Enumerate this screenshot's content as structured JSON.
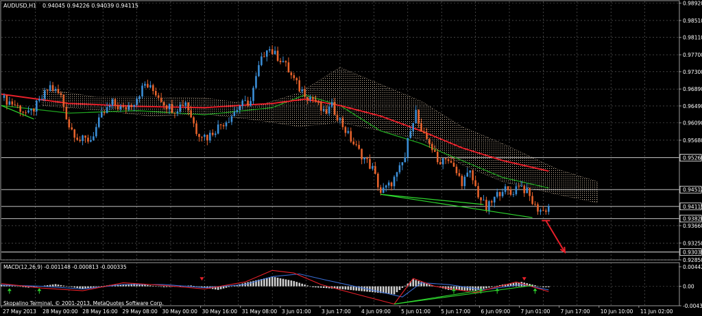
{
  "colors": {
    "background": "#000000",
    "grid": "#6b6b6b",
    "text": "#ffffff",
    "bull": "#3b8fd8",
    "bear": "#e8632c",
    "ma_red": "#e8202a",
    "ma_green": "#1fa21f",
    "cloud": "#cdb9a0",
    "trend_green": "#2ed82e",
    "arrow_red": "#e8202a",
    "macd_hist": "#cfcfcf",
    "macd_line": "#e8202a",
    "macd_signal": "#3b6fd8"
  },
  "header": {
    "symbol": "AUDUSD,H1",
    "ohlc": "0.94045 0.94226 0.94039 0.94115"
  },
  "macd_title": "MACD(12,26,9) -0.001148 -0.000813 -0.000335",
  "copyright": "Skopalino Terminal, © 2001-2013, MetaQuotes Software Corp.",
  "chart_data": [
    {
      "type": "candlestick",
      "symbol": "AUDUSD",
      "timeframe": "H1",
      "ylim": [
        0.9285,
        0.9893
      ],
      "ytick_labels": [
        "0.98920",
        "0.98510",
        "0.98110",
        "0.97700",
        "0.97300",
        "0.96890",
        "0.96490",
        "0.96090",
        "0.95680",
        "0.95266",
        "0.94512",
        "0.94115",
        "0.93826",
        "0.93660",
        "0.93250",
        "0.93038",
        "0.92850"
      ],
      "ytick_values": [
        0.9892,
        0.9851,
        0.9811,
        0.977,
        0.973,
        0.9689,
        0.9649,
        0.9609,
        0.9568,
        0.95266,
        0.94512,
        0.94115,
        0.93826,
        0.9366,
        0.9325,
        0.93038,
        0.9285
      ],
      "x_labels": [
        "27 May 2013",
        "28 May 00:00",
        "28 May 16:00",
        "29 May 08:00",
        "30 May 00:00",
        "30 May 16:00",
        "31 May 08:00",
        "3 Jun 01:00",
        "3 Jun 17:00",
        "4 Jun 09:00",
        "5 Jun 01:00",
        "5 Jun 17:00",
        "6 Jun 09:00",
        "7 Jun 01:00",
        "7 Jun 17:00",
        "10 Jun 10:00",
        "11 Jun 02:00"
      ],
      "horizontal_levels": [
        0.95266,
        0.94512,
        0.94115,
        0.93826,
        0.93038
      ],
      "highlighted_labels": [
        "0.95266",
        "0.94512",
        "0.94115",
        "0.93826",
        "0.93038"
      ],
      "close_path": [
        {
          "t": 0,
          "p": 0.9668
        },
        {
          "t": 5,
          "p": 0.9652
        },
        {
          "t": 10,
          "p": 0.9628
        },
        {
          "t": 14,
          "p": 0.9658
        },
        {
          "t": 18,
          "p": 0.9695
        },
        {
          "t": 22,
          "p": 0.9672
        },
        {
          "t": 25,
          "p": 0.9602
        },
        {
          "t": 29,
          "p": 0.9568
        },
        {
          "t": 33,
          "p": 0.957
        },
        {
          "t": 37,
          "p": 0.9625
        },
        {
          "t": 41,
          "p": 0.9655
        },
        {
          "t": 45,
          "p": 0.964
        },
        {
          "t": 49,
          "p": 0.966
        },
        {
          "t": 53,
          "p": 0.97
        },
        {
          "t": 57,
          "p": 0.968
        },
        {
          "t": 61,
          "p": 0.965
        },
        {
          "t": 64,
          "p": 0.964
        },
        {
          "t": 68,
          "p": 0.966
        },
        {
          "t": 72,
          "p": 0.959
        },
        {
          "t": 76,
          "p": 0.9575
        },
        {
          "t": 80,
          "p": 0.96
        },
        {
          "t": 84,
          "p": 0.962
        },
        {
          "t": 88,
          "p": 0.965
        },
        {
          "t": 92,
          "p": 0.966
        },
        {
          "t": 95,
          "p": 0.974
        },
        {
          "t": 98,
          "p": 0.979
        },
        {
          "t": 101,
          "p": 0.977
        },
        {
          "t": 104,
          "p": 0.9755
        },
        {
          "t": 107,
          "p": 0.972
        },
        {
          "t": 110,
          "p": 0.969
        },
        {
          "t": 113,
          "p": 0.9675
        },
        {
          "t": 116,
          "p": 0.966
        },
        {
          "t": 119,
          "p": 0.963
        },
        {
          "t": 122,
          "p": 0.9648
        },
        {
          "t": 125,
          "p": 0.9615
        },
        {
          "t": 128,
          "p": 0.958
        },
        {
          "t": 131,
          "p": 0.955
        },
        {
          "t": 134,
          "p": 0.9525
        },
        {
          "t": 137,
          "p": 0.95
        },
        {
          "t": 140,
          "p": 0.9445
        },
        {
          "t": 143,
          "p": 0.946
        },
        {
          "t": 146,
          "p": 0.9485
        },
        {
          "t": 149,
          "p": 0.9528
        },
        {
          "t": 151,
          "p": 0.96
        },
        {
          "t": 153,
          "p": 0.9635
        },
        {
          "t": 155,
          "p": 0.958
        },
        {
          "t": 158,
          "p": 0.9565
        },
        {
          "t": 161,
          "p": 0.9515
        },
        {
          "t": 164,
          "p": 0.953
        },
        {
          "t": 167,
          "p": 0.95
        },
        {
          "t": 170,
          "p": 0.947
        },
        {
          "t": 173,
          "p": 0.949
        },
        {
          "t": 176,
          "p": 0.944
        },
        {
          "t": 179,
          "p": 0.9405
        },
        {
          "t": 182,
          "p": 0.943
        },
        {
          "t": 185,
          "p": 0.9455
        },
        {
          "t": 188,
          "p": 0.944
        },
        {
          "t": 191,
          "p": 0.9465
        },
        {
          "t": 194,
          "p": 0.9445
        },
        {
          "t": 197,
          "p": 0.941
        },
        {
          "t": 200,
          "p": 0.94
        },
        {
          "t": 202,
          "p": 0.9412
        }
      ],
      "ma_red": [
        {
          "t": 0,
          "p": 0.9677
        },
        {
          "t": 25,
          "p": 0.9655
        },
        {
          "t": 50,
          "p": 0.9648
        },
        {
          "t": 75,
          "p": 0.9645
        },
        {
          "t": 100,
          "p": 0.9655
        },
        {
          "t": 112,
          "p": 0.9665
        },
        {
          "t": 125,
          "p": 0.965
        },
        {
          "t": 140,
          "p": 0.9625
        },
        {
          "t": 155,
          "p": 0.959
        },
        {
          "t": 170,
          "p": 0.955
        },
        {
          "t": 185,
          "p": 0.952
        },
        {
          "t": 202,
          "p": 0.9495
        }
      ],
      "ma_green": [
        {
          "t": 0,
          "p": 0.965
        },
        {
          "t": 25,
          "p": 0.9632
        },
        {
          "t": 50,
          "p": 0.9638
        },
        {
          "t": 75,
          "p": 0.9628
        },
        {
          "t": 100,
          "p": 0.9645
        },
        {
          "t": 112,
          "p": 0.9675
        },
        {
          "t": 125,
          "p": 0.965
        },
        {
          "t": 140,
          "p": 0.959
        },
        {
          "t": 155,
          "p": 0.956
        },
        {
          "t": 170,
          "p": 0.952
        },
        {
          "t": 185,
          "p": 0.948
        },
        {
          "t": 202,
          "p": 0.9455
        }
      ],
      "cloud_top": [
        {
          "t": 15,
          "p": 0.969
        },
        {
          "t": 35,
          "p": 0.967
        },
        {
          "t": 55,
          "p": 0.967
        },
        {
          "t": 75,
          "p": 0.9668
        },
        {
          "t": 95,
          "p": 0.965
        },
        {
          "t": 110,
          "p": 0.968
        },
        {
          "t": 125,
          "p": 0.974
        },
        {
          "t": 140,
          "p": 0.97
        },
        {
          "t": 155,
          "p": 0.966
        },
        {
          "t": 170,
          "p": 0.96
        },
        {
          "t": 185,
          "p": 0.956
        },
        {
          "t": 205,
          "p": 0.95
        },
        {
          "t": 220,
          "p": 0.947
        }
      ],
      "cloud_bottom": [
        {
          "t": 15,
          "p": 0.965
        },
        {
          "t": 35,
          "p": 0.964
        },
        {
          "t": 55,
          "p": 0.9625
        },
        {
          "t": 75,
          "p": 0.963
        },
        {
          "t": 95,
          "p": 0.9615
        },
        {
          "t": 110,
          "p": 0.96
        },
        {
          "t": 125,
          "p": 0.961
        },
        {
          "t": 140,
          "p": 0.959
        },
        {
          "t": 155,
          "p": 0.957
        },
        {
          "t": 170,
          "p": 0.951
        },
        {
          "t": 185,
          "p": 0.947
        },
        {
          "t": 205,
          "p": 0.944
        },
        {
          "t": 220,
          "p": 0.942
        }
      ],
      "trendlines": [
        {
          "from": {
            "t": 0,
            "p": 0.965
          },
          "to": {
            "t": 12,
            "p": 0.9618
          }
        },
        {
          "from": {
            "t": 140,
            "p": 0.944
          },
          "to": {
            "t": 196,
            "p": 0.9385
          }
        },
        {
          "from": {
            "t": 140,
            "p": 0.944
          },
          "to": {
            "t": 178,
            "p": 0.9416
          }
        }
      ],
      "forecast_arrow": {
        "from": {
          "t": 201,
          "p": 0.9378
        },
        "to": {
          "t": 208,
          "p": 0.9303
        }
      },
      "time_span": [
        0,
        250
      ]
    },
    {
      "type": "macd",
      "title": "MACD(12,26,9) -0.001148 -0.000813 -0.000335",
      "ylim": [
        -0.00438,
        0.00442
      ],
      "ytick_labels": [
        "0.004424",
        "0.00",
        "-0.004388"
      ],
      "ytick_values": [
        0.004424,
        0.0,
        -0.004388
      ],
      "histogram": [
        {
          "t": 0,
          "v": 0.0004
        },
        {
          "t": 10,
          "v": -0.0003
        },
        {
          "t": 20,
          "v": 0.0005
        },
        {
          "t": 30,
          "v": -0.0006
        },
        {
          "t": 40,
          "v": 0.0003
        },
        {
          "t": 50,
          "v": 0.0006
        },
        {
          "t": 60,
          "v": -0.0002
        },
        {
          "t": 70,
          "v": 0.0002
        },
        {
          "t": 80,
          "v": -0.0008
        },
        {
          "t": 90,
          "v": 0.0008
        },
        {
          "t": 100,
          "v": 0.0022
        },
        {
          "t": 108,
          "v": 0.0012
        },
        {
          "t": 115,
          "v": -0.0002
        },
        {
          "t": 125,
          "v": -0.0006
        },
        {
          "t": 135,
          "v": -0.0012
        },
        {
          "t": 145,
          "v": -0.0018
        },
        {
          "t": 152,
          "v": 0.0016
        },
        {
          "t": 158,
          "v": 0.0004
        },
        {
          "t": 165,
          "v": -0.0008
        },
        {
          "t": 175,
          "v": -0.001
        },
        {
          "t": 185,
          "v": 0.0004
        },
        {
          "t": 192,
          "v": 0.001
        },
        {
          "t": 200,
          "v": -0.0002
        }
      ],
      "macd_line": [
        {
          "t": 0,
          "v": 0.0006
        },
        {
          "t": 15,
          "v": -0.0004
        },
        {
          "t": 30,
          "v": -0.001
        },
        {
          "t": 45,
          "v": 0.0008
        },
        {
          "t": 60,
          "v": 0.0002
        },
        {
          "t": 75,
          "v": -0.0006
        },
        {
          "t": 90,
          "v": 0.001
        },
        {
          "t": 100,
          "v": 0.0036
        },
        {
          "t": 108,
          "v": 0.003
        },
        {
          "t": 118,
          "v": 0.0004
        },
        {
          "t": 130,
          "v": -0.0016
        },
        {
          "t": 145,
          "v": -0.004
        },
        {
          "t": 152,
          "v": 0.0018
        },
        {
          "t": 160,
          "v": 0.0
        },
        {
          "t": 175,
          "v": -0.0014
        },
        {
          "t": 190,
          "v": 0.001
        },
        {
          "t": 202,
          "v": -0.0012
        }
      ],
      "signal_line": [
        {
          "t": 0,
          "v": 0.0003
        },
        {
          "t": 15,
          "v": 0.0
        },
        {
          "t": 30,
          "v": -0.0006
        },
        {
          "t": 45,
          "v": 0.0004
        },
        {
          "t": 60,
          "v": 0.0004
        },
        {
          "t": 75,
          "v": -0.0003
        },
        {
          "t": 90,
          "v": 0.0004
        },
        {
          "t": 100,
          "v": 0.0022
        },
        {
          "t": 110,
          "v": 0.0028
        },
        {
          "t": 120,
          "v": 0.0014
        },
        {
          "t": 135,
          "v": -0.0006
        },
        {
          "t": 148,
          "v": -0.0024
        },
        {
          "t": 155,
          "v": 0.0008
        },
        {
          "t": 165,
          "v": 0.0004
        },
        {
          "t": 178,
          "v": -0.0008
        },
        {
          "t": 192,
          "v": 0.0004
        },
        {
          "t": 202,
          "v": -0.0008
        }
      ],
      "trendlines": [
        {
          "from": {
            "t": 145,
            "v": -0.004
          },
          "to": {
            "t": 196,
            "v": 0.0002
          }
        },
        {
          "from": {
            "t": 145,
            "v": -0.004
          },
          "to": {
            "t": 176,
            "v": -0.001
          }
        }
      ],
      "up_arrows_t": [
        3,
        14,
        167,
        177,
        183,
        197
      ],
      "red_markers_t": [
        74,
        193
      ]
    }
  ]
}
